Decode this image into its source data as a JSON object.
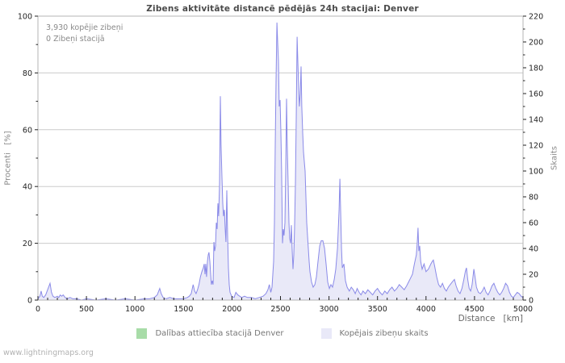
{
  "title": "Zibens aktivitāte distancē pēdējās 24h stacijai: Denver",
  "annotation": {
    "line1": "3,930 kopējie zibeņi",
    "line2": "0 Zibeņi stacijā"
  },
  "footer": "www.lightningmaps.org",
  "colors": {
    "line": "#8a8ae8",
    "fill": "#e9e9f8",
    "green": "#a8dca8",
    "grid": "#cccccc",
    "border": "#b5b5b5",
    "tick": "#222222"
  },
  "chart_data": {
    "type": "area",
    "title": "Zibens aktivitāte distancē pēdējās 24h stacijai: Denver",
    "legend_position": "bottom",
    "grid": "horizontal-only",
    "x_axis": {
      "label": "Distance   [km]",
      "min": 0,
      "max": 5000,
      "major_ticks": [
        0,
        500,
        1000,
        1500,
        2000,
        2500,
        3000,
        3500,
        4000,
        4500,
        5000
      ],
      "minor_step": 100
    },
    "left_axis": {
      "label": "Procenti   [%]",
      "min": 0,
      "max": 100,
      "major_ticks": [
        0,
        20,
        40,
        60,
        80,
        100
      ],
      "minor_step": 10
    },
    "right_axis": {
      "label": "Skaits",
      "min": 0,
      "max": 220,
      "major_ticks": [
        0,
        20,
        40,
        60,
        80,
        100,
        120,
        140,
        160,
        180,
        200,
        220
      ],
      "minor_step": 10
    },
    "series": [
      {
        "name": "Dalības attiecība stacijā Denver",
        "axis": "left",
        "color": "#a8dca8",
        "points": [
          [
            0,
            0
          ],
          [
            5000,
            0
          ]
        ]
      },
      {
        "name": "Kopējais zibeņu skaits",
        "axis": "right",
        "color": "#8a8ae8",
        "fill": "#e9e9f8",
        "points": [
          [
            0,
            1
          ],
          [
            20,
            3
          ],
          [
            33,
            7
          ],
          [
            45,
            3
          ],
          [
            60,
            2
          ],
          [
            80,
            4
          ],
          [
            100,
            8
          ],
          [
            125,
            13
          ],
          [
            140,
            6
          ],
          [
            155,
            3
          ],
          [
            175,
            2
          ],
          [
            200,
            3
          ],
          [
            215,
            2
          ],
          [
            230,
            4
          ],
          [
            245,
            3
          ],
          [
            260,
            4
          ],
          [
            280,
            2
          ],
          [
            300,
            1
          ],
          [
            330,
            2
          ],
          [
            360,
            1
          ],
          [
            400,
            1
          ],
          [
            450,
            0
          ],
          [
            500,
            1
          ],
          [
            600,
            0
          ],
          [
            700,
            1
          ],
          [
            800,
            0
          ],
          [
            900,
            1
          ],
          [
            1000,
            0
          ],
          [
            1100,
            1
          ],
          [
            1150,
            1
          ],
          [
            1200,
            2
          ],
          [
            1230,
            4
          ],
          [
            1255,
            9
          ],
          [
            1270,
            5
          ],
          [
            1290,
            2
          ],
          [
            1320,
            1
          ],
          [
            1360,
            2
          ],
          [
            1400,
            1
          ],
          [
            1450,
            1
          ],
          [
            1500,
            1
          ],
          [
            1540,
            2
          ],
          [
            1560,
            3
          ],
          [
            1580,
            5
          ],
          [
            1600,
            12
          ],
          [
            1615,
            7
          ],
          [
            1630,
            5
          ],
          [
            1645,
            8
          ],
          [
            1660,
            12
          ],
          [
            1675,
            18
          ],
          [
            1690,
            22
          ],
          [
            1705,
            25
          ],
          [
            1714,
            28
          ],
          [
            1722,
            20
          ],
          [
            1730,
            28
          ],
          [
            1738,
            18
          ],
          [
            1747,
            30
          ],
          [
            1755,
            35
          ],
          [
            1763,
            37
          ],
          [
            1772,
            30
          ],
          [
            1780,
            20
          ],
          [
            1788,
            12
          ],
          [
            1797,
            15
          ],
          [
            1805,
            12
          ],
          [
            1814,
            45
          ],
          [
            1822,
            38
          ],
          [
            1830,
            42
          ],
          [
            1839,
            60
          ],
          [
            1847,
            55
          ],
          [
            1855,
            75
          ],
          [
            1863,
            65
          ],
          [
            1872,
            90
          ],
          [
            1880,
            158
          ],
          [
            1888,
            120
          ],
          [
            1897,
            95
          ],
          [
            1905,
            75
          ],
          [
            1913,
            65
          ],
          [
            1922,
            70
          ],
          [
            1930,
            55
          ],
          [
            1938,
            45
          ],
          [
            1947,
            85
          ],
          [
            1955,
            50
          ],
          [
            1963,
            25
          ],
          [
            1972,
            12
          ],
          [
            1980,
            6
          ],
          [
            1997,
            3
          ],
          [
            2022,
            2
          ],
          [
            2040,
            6
          ],
          [
            2060,
            4
          ],
          [
            2080,
            3
          ],
          [
            2100,
            2
          ],
          [
            2130,
            3
          ],
          [
            2160,
            2
          ],
          [
            2200,
            2
          ],
          [
            2240,
            1
          ],
          [
            2280,
            2
          ],
          [
            2320,
            3
          ],
          [
            2350,
            5
          ],
          [
            2370,
            8
          ],
          [
            2385,
            12
          ],
          [
            2400,
            6
          ],
          [
            2413,
            10
          ],
          [
            2429,
            30
          ],
          [
            2438,
            60
          ],
          [
            2446,
            120
          ],
          [
            2454,
            170
          ],
          [
            2463,
            215
          ],
          [
            2471,
            200
          ],
          [
            2479,
            185
          ],
          [
            2487,
            150
          ],
          [
            2496,
            155
          ],
          [
            2504,
            130
          ],
          [
            2512,
            100
          ],
          [
            2521,
            44
          ],
          [
            2529,
            55
          ],
          [
            2537,
            50
          ],
          [
            2546,
            60
          ],
          [
            2554,
            100
          ],
          [
            2562,
            156
          ],
          [
            2570,
            120
          ],
          [
            2579,
            90
          ],
          [
            2587,
            60
          ],
          [
            2595,
            48
          ],
          [
            2604,
            44
          ],
          [
            2612,
            58
          ],
          [
            2620,
            40
          ],
          [
            2629,
            24
          ],
          [
            2637,
            35
          ],
          [
            2645,
            55
          ],
          [
            2654,
            90
          ],
          [
            2662,
            140
          ],
          [
            2671,
            204
          ],
          [
            2679,
            185
          ],
          [
            2687,
            165
          ],
          [
            2695,
            150
          ],
          [
            2704,
            160
          ],
          [
            2712,
            181
          ],
          [
            2720,
            150
          ],
          [
            2729,
            130
          ],
          [
            2737,
            115
          ],
          [
            2745,
            108
          ],
          [
            2754,
            100
          ],
          [
            2762,
            80
          ],
          [
            2770,
            60
          ],
          [
            2779,
            50
          ],
          [
            2787,
            40
          ],
          [
            2795,
            30
          ],
          [
            2804,
            22
          ],
          [
            2820,
            14
          ],
          [
            2837,
            10
          ],
          [
            2854,
            12
          ],
          [
            2870,
            18
          ],
          [
            2887,
            30
          ],
          [
            2904,
            42
          ],
          [
            2920,
            46
          ],
          [
            2937,
            46
          ],
          [
            2954,
            40
          ],
          [
            2970,
            28
          ],
          [
            2987,
            14
          ],
          [
            3004,
            9
          ],
          [
            3020,
            12
          ],
          [
            3037,
            10
          ],
          [
            3054,
            16
          ],
          [
            3070,
            24
          ],
          [
            3087,
            40
          ],
          [
            3104,
            70
          ],
          [
            3112,
            94
          ],
          [
            3120,
            70
          ],
          [
            3129,
            40
          ],
          [
            3137,
            25
          ],
          [
            3154,
            28
          ],
          [
            3170,
            15
          ],
          [
            3187,
            10
          ],
          [
            3210,
            7
          ],
          [
            3230,
            10
          ],
          [
            3250,
            8
          ],
          [
            3270,
            5
          ],
          [
            3290,
            9
          ],
          [
            3310,
            6
          ],
          [
            3330,
            4
          ],
          [
            3350,
            7
          ],
          [
            3375,
            5
          ],
          [
            3400,
            8
          ],
          [
            3425,
            6
          ],
          [
            3450,
            4
          ],
          [
            3475,
            7
          ],
          [
            3500,
            9
          ],
          [
            3525,
            6
          ],
          [
            3550,
            4
          ],
          [
            3575,
            7
          ],
          [
            3600,
            5
          ],
          [
            3625,
            8
          ],
          [
            3650,
            10
          ],
          [
            3675,
            7
          ],
          [
            3700,
            9
          ],
          [
            3725,
            12
          ],
          [
            3750,
            10
          ],
          [
            3775,
            8
          ],
          [
            3800,
            11
          ],
          [
            3820,
            14
          ],
          [
            3840,
            17
          ],
          [
            3860,
            20
          ],
          [
            3880,
            28
          ],
          [
            3900,
            35
          ],
          [
            3910,
            45
          ],
          [
            3918,
            56
          ],
          [
            3926,
            38
          ],
          [
            3935,
            42
          ],
          [
            3945,
            30
          ],
          [
            3960,
            24
          ],
          [
            3980,
            28
          ],
          [
            4000,
            22
          ],
          [
            4025,
            24
          ],
          [
            4050,
            28
          ],
          [
            4065,
            30
          ],
          [
            4076,
            31
          ],
          [
            4090,
            26
          ],
          [
            4110,
            18
          ],
          [
            4130,
            12
          ],
          [
            4150,
            10
          ],
          [
            4170,
            13
          ],
          [
            4190,
            9
          ],
          [
            4210,
            7
          ],
          [
            4230,
            10
          ],
          [
            4250,
            12
          ],
          [
            4270,
            14
          ],
          [
            4293,
            16
          ],
          [
            4310,
            11
          ],
          [
            4330,
            7
          ],
          [
            4350,
            5
          ],
          [
            4370,
            9
          ],
          [
            4390,
            16
          ],
          [
            4405,
            22
          ],
          [
            4417,
            25
          ],
          [
            4430,
            16
          ],
          [
            4445,
            9
          ],
          [
            4460,
            7
          ],
          [
            4475,
            12
          ],
          [
            4493,
            24
          ],
          [
            4505,
            18
          ],
          [
            4520,
            10
          ],
          [
            4540,
            6
          ],
          [
            4560,
            5
          ],
          [
            4580,
            7
          ],
          [
            4600,
            10
          ],
          [
            4620,
            6
          ],
          [
            4640,
            4
          ],
          [
            4660,
            7
          ],
          [
            4680,
            11
          ],
          [
            4700,
            13
          ],
          [
            4720,
            9
          ],
          [
            4740,
            6
          ],
          [
            4760,
            4
          ],
          [
            4780,
            6
          ],
          [
            4800,
            9
          ],
          [
            4820,
            13
          ],
          [
            4840,
            11
          ],
          [
            4860,
            6
          ],
          [
            4880,
            3
          ],
          [
            4900,
            2
          ],
          [
            4920,
            4
          ],
          [
            4940,
            6
          ],
          [
            4960,
            5
          ],
          [
            4980,
            3
          ],
          [
            5000,
            2
          ]
        ]
      }
    ]
  }
}
